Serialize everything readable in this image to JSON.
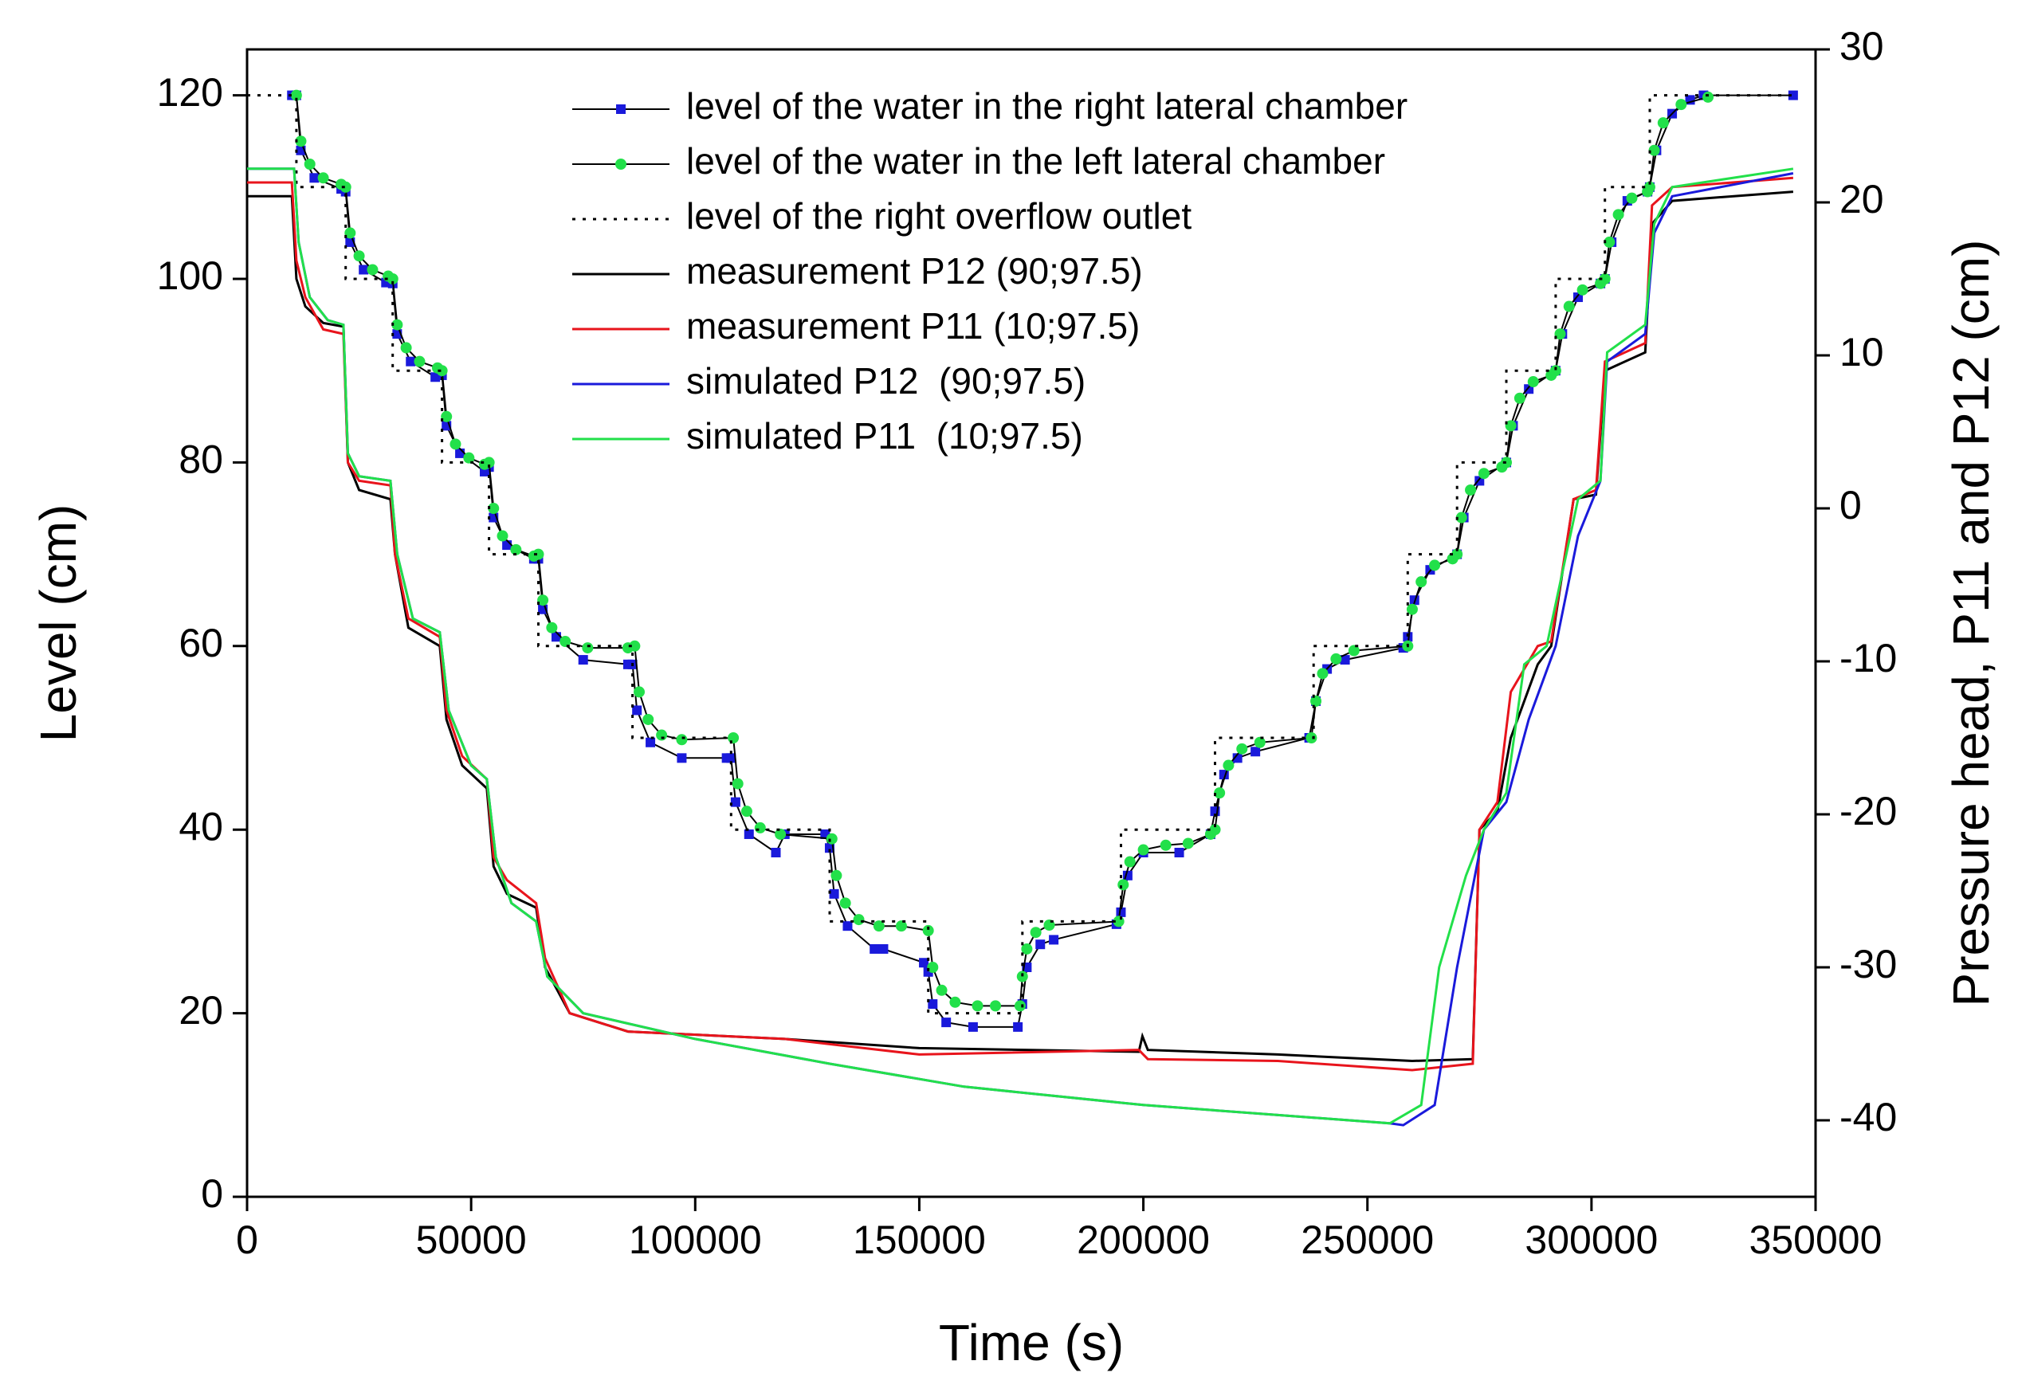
{
  "chart_data": {
    "type": "line",
    "x_label": "Time (s)",
    "y_label": "Level (cm)",
    "y2_label": "Pressure head, P11 and P12 (cm)",
    "xlim": [
      0,
      350000
    ],
    "xticks": [
      0,
      50000,
      100000,
      150000,
      200000,
      250000,
      300000,
      350000
    ],
    "ylim": [
      0,
      125
    ],
    "yticks": [
      0,
      20,
      40,
      60,
      80,
      100,
      120
    ],
    "y2lim": [
      -45,
      30
    ],
    "y2ticks": [
      -40,
      -30,
      -20,
      -10,
      0,
      10,
      20,
      30
    ],
    "legend": "upper center",
    "series": [
      {
        "name": "level of the water in the right lateral chamber",
        "color": "#1a1adb",
        "line_color": "#000000",
        "marker": "square",
        "axis": "y",
        "x": [
          10000,
          11000,
          12000,
          15000,
          21000,
          22000,
          23000,
          26000,
          31000,
          32500,
          33500,
          36500,
          42000,
          43500,
          44500,
          47500,
          53000,
          54000,
          55000,
          58000,
          64000,
          65000,
          66000,
          69000,
          75000,
          85000,
          86000,
          87000,
          90000,
          97000,
          107000,
          108000,
          109000,
          112000,
          118000,
          120000,
          129000,
          130000,
          131000,
          134000,
          140000,
          142000,
          151000,
          152000,
          153000,
          156000,
          162000,
          172000,
          173000,
          174000,
          177000,
          180000,
          194000,
          195000,
          196500,
          200000,
          208000,
          215000,
          216000,
          218000,
          221000,
          225000,
          237000,
          238500,
          241000,
          245000,
          258000,
          259000,
          260500,
          264000,
          270000,
          271500,
          275000,
          281000,
          282500,
          286000,
          292000,
          293500,
          297000,
          302000,
          303000,
          304500,
          308000,
          312500,
          313000,
          314500,
          318000,
          322000,
          325000,
          345000
        ],
        "values": [
          120,
          120,
          114,
          111,
          109.8,
          109.5,
          104,
          101,
          99.6,
          99.5,
          94,
          91,
          89.3,
          89.5,
          84,
          81,
          79,
          79.5,
          74,
          71,
          69.5,
          69.5,
          64,
          61,
          58.5,
          58,
          58,
          53,
          49.5,
          47.8,
          47.8,
          47.8,
          43,
          39.5,
          37.5,
          39.5,
          39.5,
          38,
          33,
          29.5,
          27,
          27,
          25.5,
          24.5,
          21,
          19,
          18.5,
          18.5,
          21,
          25,
          27.5,
          28,
          29.7,
          31,
          35,
          37.5,
          37.5,
          39.5,
          42,
          46,
          47.8,
          48.5,
          50,
          54,
          57.5,
          58.5,
          59.8,
          61,
          65,
          68.3,
          70,
          74,
          78,
          80,
          84,
          88,
          90,
          94,
          98,
          99.5,
          100,
          104,
          108.5,
          109.5,
          110,
          114,
          118,
          119.5,
          120,
          120
        ]
      },
      {
        "name": "level of the water in the left lateral chamber",
        "color": "#22e04a",
        "line_color": "#000000",
        "marker": "circle",
        "axis": "y",
        "x": [
          11000,
          12000,
          14000,
          17000,
          21000,
          22000,
          23000,
          25000,
          28000,
          31500,
          32500,
          33500,
          35500,
          38500,
          42500,
          43500,
          44500,
          46500,
          49500,
          53000,
          54000,
          55000,
          57000,
          60000,
          64000,
          65000,
          66000,
          68000,
          71000,
          76000,
          85000,
          86500,
          87500,
          89500,
          92500,
          97000,
          108500,
          109500,
          111500,
          114500,
          119000,
          130500,
          131500,
          133500,
          136500,
          141000,
          146000,
          152000,
          153000,
          155000,
          158000,
          163000,
          167000,
          172500,
          173000,
          174000,
          176000,
          179000,
          194500,
          195500,
          197000,
          200000,
          205000,
          210000,
          215000,
          216000,
          217000,
          219000,
          222000,
          226000,
          237500,
          238500,
          240000,
          243000,
          247000,
          259000,
          260000,
          262000,
          265000,
          269000,
          270000,
          271000,
          273000,
          276000,
          280000,
          281000,
          282000,
          284000,
          287000,
          291000,
          292000,
          293000,
          295000,
          298000,
          302000,
          303000,
          304000,
          306000,
          309000,
          312500,
          313000,
          314000,
          316000,
          320000,
          326000
        ],
        "values": [
          120,
          115,
          112.5,
          111,
          110.3,
          110,
          105,
          102.5,
          101,
          100.3,
          100,
          95,
          92.5,
          91,
          90.3,
          90,
          85,
          82,
          80.5,
          79.8,
          80,
          75,
          72,
          70.5,
          69.8,
          70,
          65,
          62,
          60.5,
          59.8,
          59.8,
          60,
          55,
          52,
          50.3,
          49.8,
          50,
          45,
          42,
          40.2,
          39.5,
          39,
          35,
          32,
          30.2,
          29.5,
          29.5,
          29,
          25,
          22.5,
          21.2,
          20.8,
          20.8,
          20.8,
          24,
          27,
          28.8,
          29.6,
          30,
          34,
          36.5,
          37.8,
          38.3,
          38.5,
          39.5,
          40,
          44,
          47,
          48.8,
          49.5,
          50,
          54,
          57,
          58.6,
          59.5,
          60,
          64,
          67,
          68.8,
          69.5,
          70,
          74,
          77,
          78.8,
          79.5,
          80,
          84,
          87,
          88.8,
          89.5,
          90,
          94,
          97,
          98.8,
          99.5,
          100,
          104,
          107,
          108.8,
          109.5,
          110,
          114,
          117,
          119,
          119.8
        ]
      },
      {
        "name": "level of the right overflow outlet",
        "color": "#000000",
        "linestyle": "dotted",
        "axis": "y",
        "x": [
          0,
          11000,
          11000,
          22000,
          22000,
          32500,
          32500,
          43500,
          43500,
          54000,
          54000,
          65000,
          65000,
          86000,
          86000,
          108000,
          108000,
          130000,
          130000,
          152000,
          152000,
          173000,
          173000,
          195000,
          195000,
          216000,
          216000,
          238000,
          238000,
          259000,
          259000,
          270000,
          270000,
          281000,
          281000,
          292000,
          292000,
          303000,
          303000,
          313000,
          313000,
          345000
        ],
        "values": [
          120,
          120,
          110,
          110,
          100,
          100,
          90,
          90,
          80,
          80,
          70,
          70,
          60,
          60,
          50,
          50,
          40,
          40,
          30,
          30,
          20,
          20,
          30,
          30,
          40,
          40,
          50,
          50,
          60,
          60,
          70,
          70,
          80,
          80,
          90,
          90,
          100,
          100,
          110,
          110,
          120,
          120
        ]
      },
      {
        "name": "measurement P12 (90;97.5)",
        "color": "#000000",
        "axis": "y2",
        "x": [
          0,
          10000,
          11000,
          13000,
          17000,
          21500,
          22500,
          25000,
          32000,
          33000,
          36000,
          43000,
          44500,
          48000,
          53500,
          55000,
          58000,
          64500,
          66500,
          72000,
          85000,
          120000,
          150000,
          199000,
          199800,
          201000,
          230000,
          260000,
          273500,
          275000,
          279000,
          282000,
          288000,
          291000,
          296000,
          301000,
          303000,
          312000,
          313500,
          318000,
          345000
        ],
        "values": [
          20.4,
          20.4,
          15,
          13.2,
          12.12,
          11.88,
          3,
          1.2,
          0.6,
          -3,
          -7.8,
          -9,
          -13.8,
          -16.8,
          -18.3,
          -23.4,
          -25.2,
          -26.1,
          -30,
          -33,
          -34.2,
          -34.68,
          -35.28,
          -35.52,
          -34.5,
          -35.4,
          -35.7,
          -36.12,
          -36,
          -21,
          -19.8,
          -15,
          -10.2,
          -9,
          0.6,
          0.9,
          9,
          10.2,
          18.6,
          20.1,
          20.7
        ]
      },
      {
        "name": "measurement P11 (10;97.5)",
        "color": "#e8141c",
        "axis": "y2",
        "x": [
          0,
          10000,
          11000,
          13000,
          17000,
          21500,
          22500,
          25000,
          32000,
          33000,
          36000,
          43000,
          44500,
          48000,
          53500,
          55000,
          58000,
          64500,
          66500,
          72000,
          85000,
          120000,
          150000,
          199000,
          199800,
          201000,
          230000,
          260000,
          273500,
          275000,
          279000,
          282000,
          288000,
          291000,
          296000,
          301000,
          303000,
          312000,
          313500,
          318000,
          345000
        ],
        "values": [
          21.3,
          21.3,
          16.2,
          13.8,
          11.7,
          11.4,
          3,
          1.8,
          1.5,
          -3,
          -7.2,
          -8.4,
          -13.2,
          -16.2,
          -17.7,
          -22.8,
          -24.3,
          -25.8,
          -29.4,
          -33,
          -34.2,
          -34.68,
          -35.7,
          -35.4,
          -35.64,
          -36,
          -36.12,
          -36.72,
          -36.3,
          -21,
          -19.2,
          -12,
          -9,
          -8.7,
          0.6,
          1.2,
          9.6,
          10.8,
          19.8,
          21,
          21.6
        ]
      },
      {
        "name": "simulated P12  (90;97.5)",
        "color": "#1a1adb",
        "axis": "y2",
        "x": [
          0,
          10500,
          11500,
          14000,
          18000,
          21500,
          22500,
          25000,
          32000,
          33500,
          37000,
          43000,
          45000,
          50000,
          53500,
          55500,
          59000,
          64500,
          67000,
          75000,
          100000,
          130000,
          160000,
          200000,
          255000,
          258000,
          265000,
          270000,
          276000,
          281000,
          286000,
          292000,
          297000,
          302000,
          303500,
          312000,
          314000,
          318000,
          345000
        ],
        "values": [
          22.2,
          22.2,
          17.4,
          13.8,
          12.3,
          12,
          3.6,
          2.1,
          1.8,
          -3,
          -7.2,
          -8.1,
          -13.2,
          -16.8,
          -17.7,
          -22.8,
          -25.8,
          -27,
          -30.6,
          -33,
          -34.68,
          -36.3,
          -37.8,
          -39,
          -40.2,
          -40.32,
          -39,
          -30,
          -21,
          -19.2,
          -13.8,
          -9,
          -1.8,
          1.8,
          9.6,
          11.4,
          18,
          20.4,
          21.9
        ]
      },
      {
        "name": "simulated P11  (10;97.5)",
        "color": "#22e04a",
        "axis": "y2",
        "x": [
          0,
          10500,
          11500,
          14000,
          18000,
          21500,
          22500,
          25000,
          32000,
          33500,
          37000,
          43000,
          45000,
          50000,
          53500,
          55500,
          59000,
          64500,
          67000,
          75000,
          100000,
          130000,
          160000,
          200000,
          255000,
          262000,
          266000,
          272000,
          276000,
          281000,
          285000,
          290000,
          297000,
          302000,
          303500,
          312000,
          314000,
          318000,
          345000
        ],
        "values": [
          22.2,
          22.2,
          17.4,
          13.8,
          12.3,
          12,
          3.6,
          2.1,
          1.8,
          -3,
          -7.2,
          -8.1,
          -13.2,
          -16.8,
          -17.7,
          -22.8,
          -25.8,
          -27,
          -30.6,
          -33,
          -34.68,
          -36.3,
          -37.8,
          -39,
          -40.2,
          -39,
          -30,
          -24,
          -21,
          -18.6,
          -10.2,
          -9,
          0.6,
          1.8,
          10.2,
          12,
          18.6,
          21,
          22.2
        ]
      }
    ]
  }
}
